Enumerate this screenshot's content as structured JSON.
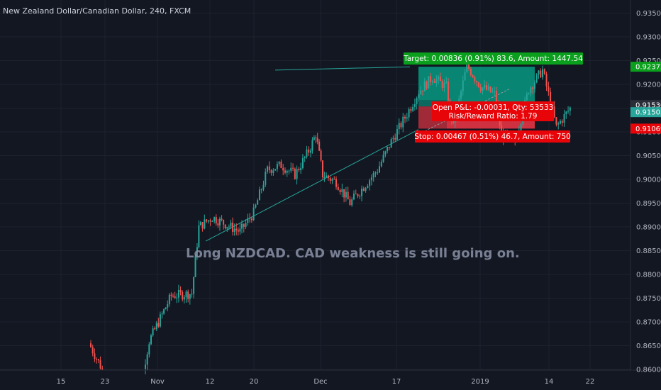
{
  "header": {
    "symbol_title": "New Zealand Dollar/Canadian Dollar, 240, FXCM"
  },
  "annotation": {
    "text": "Long NZDCAD. CAD weakness is still going on."
  },
  "colors": {
    "background": "#131722",
    "up": "#26a69a",
    "down": "#ef5350",
    "target_box": "#089981",
    "stop_box": "#f23645",
    "label_green": "#0a9f1c",
    "label_red": "#e8050a",
    "axis_text": "#b2b5be",
    "trendline": "#26a69a"
  },
  "chart_data": {
    "type": "candlestick",
    "title": "New Zealand Dollar/Canadian Dollar, 240, FXCM",
    "y_axis": {
      "ticks": [
        "0.93500",
        "0.93000",
        "0.92500",
        "0.92000",
        "0.91500",
        "0.91000",
        "0.90500",
        "0.90000",
        "0.89500",
        "0.89000",
        "0.88500",
        "0.88000",
        "0.87500",
        "0.87000",
        "0.86500",
        "0.86000"
      ],
      "ylim": [
        0.8597,
        0.937
      ]
    },
    "x_axis": {
      "ticks": [
        "15",
        "23",
        "Nov",
        "12",
        "20",
        "Dec",
        "17",
        "2019",
        "14",
        "22"
      ]
    },
    "price_tags": [
      {
        "label": "0.92372",
        "value": 0.92372,
        "color": "#0a9f1c"
      },
      {
        "label": "0.91536",
        "value": 0.91536,
        "color": "#2a2e39"
      },
      {
        "label": "0.91505",
        "value": 0.91505,
        "color": "#26a69a"
      },
      {
        "label": "0.91069",
        "value": 0.91069,
        "color": "#e8050a"
      }
    ],
    "position": {
      "side": "long",
      "entry": 0.91536,
      "target": 0.92372,
      "stop": 0.91069,
      "target_label": "Target: 0.00836 (0.91%) 83.6, Amount: 1447.54",
      "stop_label": "Stop: 0.00467 (0.51%) 46.7, Amount: 750",
      "pnl_label": "Open P&L: -0.00031, Qty: 53533",
      "rr_label": "Risk/Reward Ratio: 1.79"
    },
    "trendlines": [
      {
        "name": "support",
        "from": {
          "date": "Nov 12",
          "price": 0.887
        },
        "to": {
          "date": "Dec 24",
          "price": 0.9105
        }
      },
      {
        "name": "resistance",
        "from": {
          "date": "Nov 24",
          "price": 0.923
        },
        "to": {
          "date": "Dec 17",
          "price": 0.9237
        }
      }
    ],
    "price_path": [
      {
        "date": "Oct 21",
        "close": 0.8655
      },
      {
        "date": "Oct 23",
        "close": 0.86
      },
      {
        "date": "Oct 31",
        "close": 0.86
      },
      {
        "date": "Nov 1",
        "close": 0.866
      },
      {
        "date": "Nov 2",
        "close": 0.8755
      },
      {
        "date": "Nov 5",
        "close": 0.876
      },
      {
        "date": "Nov 6",
        "close": 0.89
      },
      {
        "date": "Nov 8",
        "close": 0.892
      },
      {
        "date": "Nov 12",
        "close": 0.889
      },
      {
        "date": "Nov 14",
        "close": 0.893
      },
      {
        "date": "Nov 16",
        "close": 0.902
      },
      {
        "date": "Nov 18",
        "close": 0.903
      },
      {
        "date": "Nov 20",
        "close": 0.901
      },
      {
        "date": "Nov 22",
        "close": 0.906
      },
      {
        "date": "Nov 23",
        "close": 0.9095
      },
      {
        "date": "Nov 24",
        "close": 0.901
      },
      {
        "date": "Nov 26",
        "close": 0.8995
      },
      {
        "date": "Nov 28",
        "close": 0.895
      },
      {
        "date": "Nov 30",
        "close": 0.8985
      },
      {
        "date": "Dec 2",
        "close": 0.902
      },
      {
        "date": "Dec 4",
        "close": 0.908
      },
      {
        "date": "Dec 6",
        "close": 0.913
      },
      {
        "date": "Dec 8",
        "close": 0.9185
      },
      {
        "date": "Dec 10",
        "close": 0.9215
      },
      {
        "date": "Dec 12",
        "close": 0.9195
      },
      {
        "date": "Dec 13",
        "close": 0.911
      },
      {
        "date": "Dec 15",
        "close": 0.924
      },
      {
        "date": "Dec 17",
        "close": 0.9195
      },
      {
        "date": "Dec 19",
        "close": 0.918
      },
      {
        "date": "Dec 20",
        "close": 0.9095
      },
      {
        "date": "Dec 22",
        "close": 0.908
      },
      {
        "date": "Dec 24",
        "close": 0.919
      },
      {
        "date": "Dec 26",
        "close": 0.923
      },
      {
        "date": "Dec 28",
        "close": 0.911
      },
      {
        "date": "Dec 30",
        "close": 0.915
      }
    ]
  }
}
